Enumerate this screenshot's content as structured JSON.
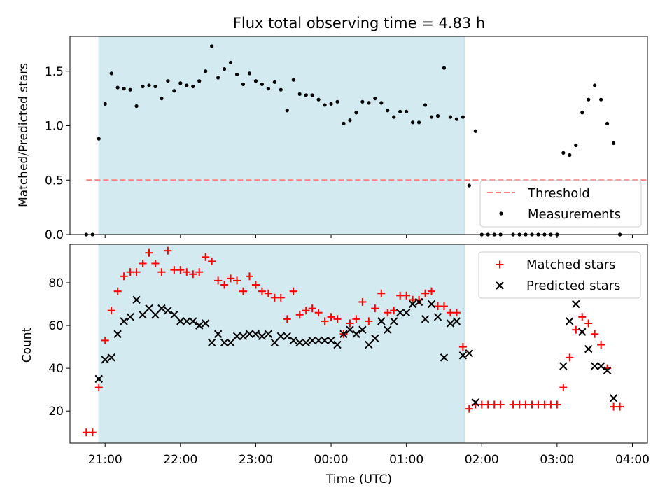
{
  "chart_data": [
    {
      "type": "scatter",
      "title": "Flux total observing time = 4.83 h",
      "xlabel": "",
      "ylabel": "Matched/Predicted stars",
      "ylim": [
        0,
        1.82
      ],
      "yticks": [
        "0.0",
        "0.5",
        "1.0",
        "1.5"
      ],
      "x_range": [
        "20:32",
        "04:12"
      ],
      "observing_window": [
        "20:55",
        "01:46"
      ],
      "threshold": {
        "name": "Threshold",
        "value": 0.5,
        "color": "#ff7f7f",
        "x": [
          "20:45",
          "04:12"
        ]
      },
      "series": [
        {
          "name": "Measurements",
          "color": "#000000",
          "points": [
            [
              "20:45",
              0.0
            ],
            [
              "20:50",
              0.0
            ],
            [
              "20:55",
              0.88
            ],
            [
              "21:00",
              1.2
            ],
            [
              "21:05",
              1.48
            ],
            [
              "21:10",
              1.35
            ],
            [
              "21:15",
              1.34
            ],
            [
              "21:20",
              1.33
            ],
            [
              "21:25",
              1.18
            ],
            [
              "21:30",
              1.36
            ],
            [
              "21:35",
              1.37
            ],
            [
              "21:40",
              1.36
            ],
            [
              "21:45",
              1.25
            ],
            [
              "21:50",
              1.41
            ],
            [
              "21:55",
              1.32
            ],
            [
              "22:00",
              1.39
            ],
            [
              "22:05",
              1.37
            ],
            [
              "22:10",
              1.36
            ],
            [
              "22:15",
              1.41
            ],
            [
              "22:20",
              1.5
            ],
            [
              "22:25",
              1.73
            ],
            [
              "22:30",
              1.44
            ],
            [
              "22:35",
              1.52
            ],
            [
              "22:40",
              1.58
            ],
            [
              "22:45",
              1.47
            ],
            [
              "22:50",
              1.38
            ],
            [
              "22:55",
              1.48
            ],
            [
              "23:00",
              1.41
            ],
            [
              "23:05",
              1.38
            ],
            [
              "23:10",
              1.34
            ],
            [
              "23:15",
              1.4
            ],
            [
              "23:20",
              1.33
            ],
            [
              "23:25",
              1.14
            ],
            [
              "23:30",
              1.42
            ],
            [
              "23:35",
              1.29
            ],
            [
              "23:40",
              1.28
            ],
            [
              "23:45",
              1.28
            ],
            [
              "23:50",
              1.24
            ],
            [
              "23:55",
              1.19
            ],
            [
              "00:00",
              1.2
            ],
            [
              "00:05",
              1.22
            ],
            [
              "00:10",
              1.02
            ],
            [
              "00:15",
              1.05
            ],
            [
              "00:20",
              1.12
            ],
            [
              "00:25",
              1.22
            ],
            [
              "00:30",
              1.21
            ],
            [
              "00:35",
              1.25
            ],
            [
              "00:40",
              1.21
            ],
            [
              "00:45",
              1.14
            ],
            [
              "00:50",
              1.08
            ],
            [
              "00:55",
              1.13
            ],
            [
              "01:00",
              1.13
            ],
            [
              "01:05",
              1.03
            ],
            [
              "01:10",
              1.03
            ],
            [
              "01:15",
              1.19
            ],
            [
              "01:20",
              1.08
            ],
            [
              "01:25",
              1.09
            ],
            [
              "01:30",
              1.53
            ],
            [
              "01:35",
              1.08
            ],
            [
              "01:40",
              1.06
            ],
            [
              "01:45",
              1.08
            ],
            [
              "01:50",
              0.45
            ],
            [
              "01:55",
              0.95
            ],
            [
              "02:00",
              0.0
            ],
            [
              "02:05",
              0.0
            ],
            [
              "02:10",
              0.0
            ],
            [
              "02:15",
              0.0
            ],
            [
              "02:25",
              0.0
            ],
            [
              "02:30",
              0.0
            ],
            [
              "02:35",
              0.0
            ],
            [
              "02:40",
              0.0
            ],
            [
              "02:45",
              0.0
            ],
            [
              "02:50",
              0.0
            ],
            [
              "02:55",
              0.0
            ],
            [
              "03:00",
              0.0
            ],
            [
              "03:05",
              0.75
            ],
            [
              "03:10",
              0.73
            ],
            [
              "03:15",
              0.82
            ],
            [
              "03:20",
              1.12
            ],
            [
              "03:25",
              1.24
            ],
            [
              "03:30",
              1.37
            ],
            [
              "03:35",
              1.24
            ],
            [
              "03:40",
              1.02
            ],
            [
              "03:45",
              0.84
            ],
            [
              "03:50",
              0.0
            ]
          ]
        }
      ],
      "legend": {
        "position": "lower-right",
        "entries": [
          "Threshold",
          "Measurements"
        ]
      }
    },
    {
      "type": "scatter",
      "title": "",
      "xlabel": "Time (UTC)",
      "ylabel": "Count",
      "ylim": [
        5,
        98
      ],
      "yticks": [
        "20",
        "40",
        "60",
        "80"
      ],
      "xticks": [
        "21:00",
        "22:00",
        "23:00",
        "00:00",
        "01:00",
        "02:00",
        "03:00",
        "04:00"
      ],
      "x_range": [
        "20:32",
        "04:12"
      ],
      "observing_window": [
        "20:55",
        "01:46"
      ],
      "series": [
        {
          "name": "Matched stars",
          "marker": "+",
          "color": "#ff0000",
          "points": [
            [
              "20:45",
              10
            ],
            [
              "20:50",
              10
            ],
            [
              "20:55",
              31
            ],
            [
              "21:00",
              53
            ],
            [
              "21:05",
              67
            ],
            [
              "21:10",
              76
            ],
            [
              "21:15",
              83
            ],
            [
              "21:20",
              85
            ],
            [
              "21:25",
              85
            ],
            [
              "21:30",
              89
            ],
            [
              "21:35",
              94
            ],
            [
              "21:40",
              89
            ],
            [
              "21:45",
              85
            ],
            [
              "21:50",
              95
            ],
            [
              "21:55",
              86
            ],
            [
              "22:00",
              86
            ],
            [
              "22:05",
              85
            ],
            [
              "22:10",
              84
            ],
            [
              "22:15",
              85
            ],
            [
              "22:20",
              92
            ],
            [
              "22:25",
              90
            ],
            [
              "22:30",
              81
            ],
            [
              "22:35",
              79
            ],
            [
              "22:40",
              82
            ],
            [
              "22:45",
              81
            ],
            [
              "22:50",
              76
            ],
            [
              "22:55",
              83
            ],
            [
              "23:00",
              79
            ],
            [
              "23:05",
              76
            ],
            [
              "23:10",
              75
            ],
            [
              "23:15",
              73
            ],
            [
              "23:20",
              73
            ],
            [
              "23:25",
              63
            ],
            [
              "23:30",
              76
            ],
            [
              "23:35",
              65
            ],
            [
              "23:40",
              67
            ],
            [
              "23:45",
              68
            ],
            [
              "23:50",
              66
            ],
            [
              "23:55",
              62
            ],
            [
              "00:00",
              64
            ],
            [
              "00:05",
              63
            ],
            [
              "00:10",
              56
            ],
            [
              "00:15",
              61
            ],
            [
              "00:20",
              63
            ],
            [
              "00:25",
              71
            ],
            [
              "00:30",
              62
            ],
            [
              "00:35",
              68
            ],
            [
              "00:40",
              75
            ],
            [
              "00:45",
              66
            ],
            [
              "00:50",
              67
            ],
            [
              "00:55",
              74
            ],
            [
              "01:00",
              74
            ],
            [
              "01:05",
              72
            ],
            [
              "01:10",
              72
            ],
            [
              "01:15",
              75
            ],
            [
              "01:20",
              76
            ],
            [
              "01:25",
              69
            ],
            [
              "01:30",
              69
            ],
            [
              "01:35",
              66
            ],
            [
              "01:40",
              66
            ],
            [
              "01:45",
              50
            ],
            [
              "01:50",
              21
            ],
            [
              "01:55",
              23
            ],
            [
              "02:00",
              23
            ],
            [
              "02:05",
              23
            ],
            [
              "02:10",
              23
            ],
            [
              "02:15",
              23
            ],
            [
              "02:25",
              23
            ],
            [
              "02:30",
              23
            ],
            [
              "02:35",
              23
            ],
            [
              "02:40",
              23
            ],
            [
              "02:45",
              23
            ],
            [
              "02:50",
              23
            ],
            [
              "02:55",
              23
            ],
            [
              "03:00",
              23
            ],
            [
              "03:05",
              31
            ],
            [
              "03:10",
              45
            ],
            [
              "03:15",
              58
            ],
            [
              "03:20",
              64
            ],
            [
              "03:25",
              61
            ],
            [
              "03:30",
              56
            ],
            [
              "03:35",
              51
            ],
            [
              "03:40",
              40
            ],
            [
              "03:45",
              22
            ],
            [
              "03:50",
              22
            ]
          ]
        },
        {
          "name": "Predicted stars",
          "marker": "x",
          "color": "#000000",
          "points": [
            [
              "20:55",
              35
            ],
            [
              "21:00",
              44
            ],
            [
              "21:05",
              45
            ],
            [
              "21:10",
              56
            ],
            [
              "21:15",
              62
            ],
            [
              "21:20",
              64
            ],
            [
              "21:25",
              72
            ],
            [
              "21:30",
              65
            ],
            [
              "21:35",
              68
            ],
            [
              "21:40",
              65
            ],
            [
              "21:45",
              68
            ],
            [
              "21:50",
              67
            ],
            [
              "21:55",
              65
            ],
            [
              "22:00",
              62
            ],
            [
              "22:05",
              62
            ],
            [
              "22:10",
              62
            ],
            [
              "22:15",
              60
            ],
            [
              "22:20",
              61
            ],
            [
              "22:25",
              52
            ],
            [
              "22:30",
              56
            ],
            [
              "22:35",
              52
            ],
            [
              "22:40",
              52
            ],
            [
              "22:45",
              55
            ],
            [
              "22:50",
              55
            ],
            [
              "22:55",
              56
            ],
            [
              "23:00",
              56
            ],
            [
              "23:05",
              55
            ],
            [
              "23:10",
              56
            ],
            [
              "23:15",
              52
            ],
            [
              "23:20",
              55
            ],
            [
              "23:25",
              55
            ],
            [
              "23:30",
              53
            ],
            [
              "23:35",
              52
            ],
            [
              "23:40",
              52
            ],
            [
              "23:45",
              53
            ],
            [
              "23:50",
              53
            ],
            [
              "23:55",
              53
            ],
            [
              "00:00",
              53
            ],
            [
              "00:05",
              51
            ],
            [
              "00:10",
              56
            ],
            [
              "00:15",
              58
            ],
            [
              "00:20",
              56
            ],
            [
              "00:25",
              58
            ],
            [
              "00:30",
              51
            ],
            [
              "00:35",
              54
            ],
            [
              "00:40",
              62
            ],
            [
              "00:45",
              58
            ],
            [
              "00:50",
              62
            ],
            [
              "00:55",
              66
            ],
            [
              "01:00",
              66
            ],
            [
              "01:05",
              70
            ],
            [
              "01:10",
              71
            ],
            [
              "01:15",
              63
            ],
            [
              "01:20",
              70
            ],
            [
              "01:25",
              64
            ],
            [
              "01:30",
              45
            ],
            [
              "01:35",
              61
            ],
            [
              "01:40",
              62
            ],
            [
              "01:45",
              46
            ],
            [
              "01:50",
              47
            ],
            [
              "01:55",
              24
            ],
            [
              "03:05",
              41
            ],
            [
              "03:10",
              62
            ],
            [
              "03:15",
              70
            ],
            [
              "03:20",
              57
            ],
            [
              "03:25",
              49
            ],
            [
              "03:30",
              41
            ],
            [
              "03:35",
              41
            ],
            [
              "03:40",
              39
            ],
            [
              "03:45",
              26
            ]
          ]
        }
      ],
      "legend": {
        "position": "top-right",
        "entries": [
          "Matched stars",
          "Predicted stars"
        ]
      }
    }
  ],
  "colors": {
    "observing_window": "#d3eaf1",
    "window_edge": "#add8e6"
  }
}
